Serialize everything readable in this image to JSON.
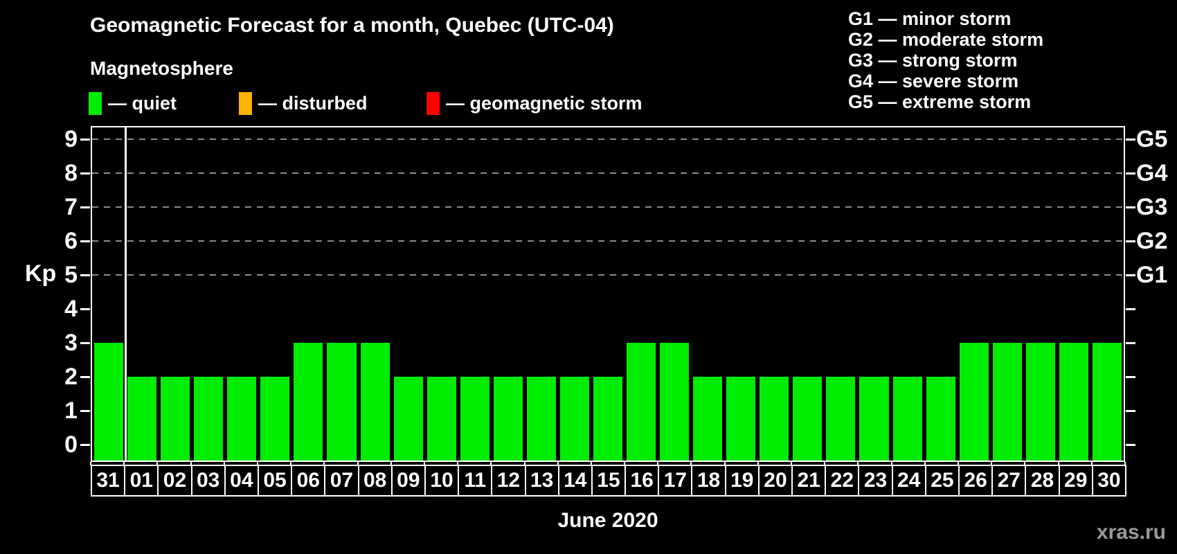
{
  "title": "Geomagnetic Forecast for a month, Quebec (UTC-04)",
  "subtitle": "Magnetosphere",
  "legend": [
    {
      "name": "quiet",
      "label": "— quiet",
      "color": "#00ec00"
    },
    {
      "name": "disturbed",
      "label": "— disturbed",
      "color": "#ffb400"
    },
    {
      "name": "geomagnetic-storm",
      "label": "— geomagnetic storm",
      "color": "#ff0000"
    }
  ],
  "storm_levels": [
    {
      "code": "G1",
      "label": "G1 — minor storm",
      "kp": 5
    },
    {
      "code": "G2",
      "label": "G2 — moderate storm",
      "kp": 6
    },
    {
      "code": "G3",
      "label": "G3 — strong storm",
      "kp": 7
    },
    {
      "code": "G4",
      "label": "G4 — severe storm",
      "kp": 8
    },
    {
      "code": "G5",
      "label": "G5 — extreme storm",
      "kp": 9
    }
  ],
  "y_axis": {
    "label": "Kp",
    "ticks": [
      0,
      1,
      2,
      3,
      4,
      5,
      6,
      7,
      8,
      9
    ]
  },
  "x_axis": {
    "label": "June 2020"
  },
  "watermark": "xras.ru",
  "colors": {
    "background": "#000000",
    "bar": "#00ec00",
    "disturbed": "#ffb400",
    "storm": "#ff0000",
    "grid": "#8c8c8c",
    "frame": "#ffffff",
    "watermark": "#9a9a9a"
  },
  "chart_data": {
    "type": "bar",
    "title": "Geomagnetic Forecast for a month, Quebec (UTC-04)",
    "xlabel": "June 2020",
    "ylabel": "Kp",
    "ylim": [
      0,
      9
    ],
    "grid": "dashed horizontal lines at Kp 5,6,7,8,9 (G1–G5)",
    "legend_position": "top-left (status colors) and top-right (G-scale)",
    "categories": [
      "31",
      "01",
      "02",
      "03",
      "04",
      "05",
      "06",
      "07",
      "08",
      "09",
      "10",
      "11",
      "12",
      "13",
      "14",
      "15",
      "16",
      "17",
      "18",
      "19",
      "20",
      "21",
      "22",
      "23",
      "24",
      "25",
      "26",
      "27",
      "28",
      "29",
      "30"
    ],
    "values": [
      3,
      2,
      2,
      2,
      2,
      2,
      3,
      3,
      3,
      2,
      2,
      2,
      2,
      2,
      2,
      2,
      3,
      3,
      2,
      2,
      2,
      2,
      2,
      2,
      2,
      2,
      3,
      3,
      3,
      3,
      3
    ],
    "bar_status": "quiet"
  }
}
